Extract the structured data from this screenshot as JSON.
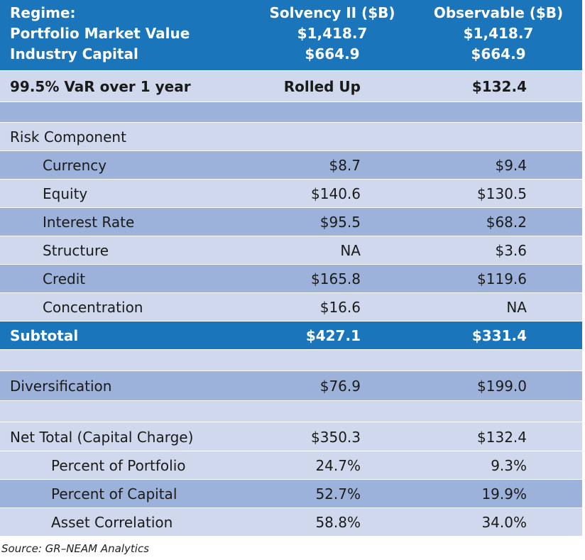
{
  "header": {
    "rows": [
      [
        "Regime:",
        "Solvency II ($B)",
        "Observable ($B)"
      ],
      [
        "Portfolio Market Value",
        "$1,418.7",
        "$1,418.7"
      ],
      [
        "Industry Capital",
        "$664.9",
        "$664.9"
      ]
    ]
  },
  "table": {
    "rows": [
      [
        "99.5% VaR over 1 year",
        "Rolled Up",
        "$132.4"
      ],
      [
        "Risk Component"
      ],
      [
        "Currency",
        "$8.7",
        "$9.4"
      ],
      [
        "Equity",
        "$140.6",
        "$130.5"
      ],
      [
        "Interest Rate",
        "$95.5",
        "$68.2"
      ],
      [
        "Structure",
        "NA",
        "$3.6"
      ],
      [
        "Credit",
        "$165.8",
        "$119.6"
      ],
      [
        "Concentration",
        "$16.6",
        "NA"
      ],
      [
        "Subtotal",
        "$427.1",
        "$331.4"
      ],
      [
        "Diversification",
        "$76.9",
        "$199.0"
      ],
      [
        "Net Total (Capital Charge)",
        "$350.3",
        "$132.4"
      ],
      [
        "Percent of Portfolio",
        "24.7%",
        "9.3%"
      ],
      [
        "Percent of Capital",
        "52.7%",
        "19.9%"
      ],
      [
        "Asset Correlation",
        "58.8%",
        "34.0%"
      ]
    ]
  },
  "source": "Source: GR–NEAM Analytics"
}
